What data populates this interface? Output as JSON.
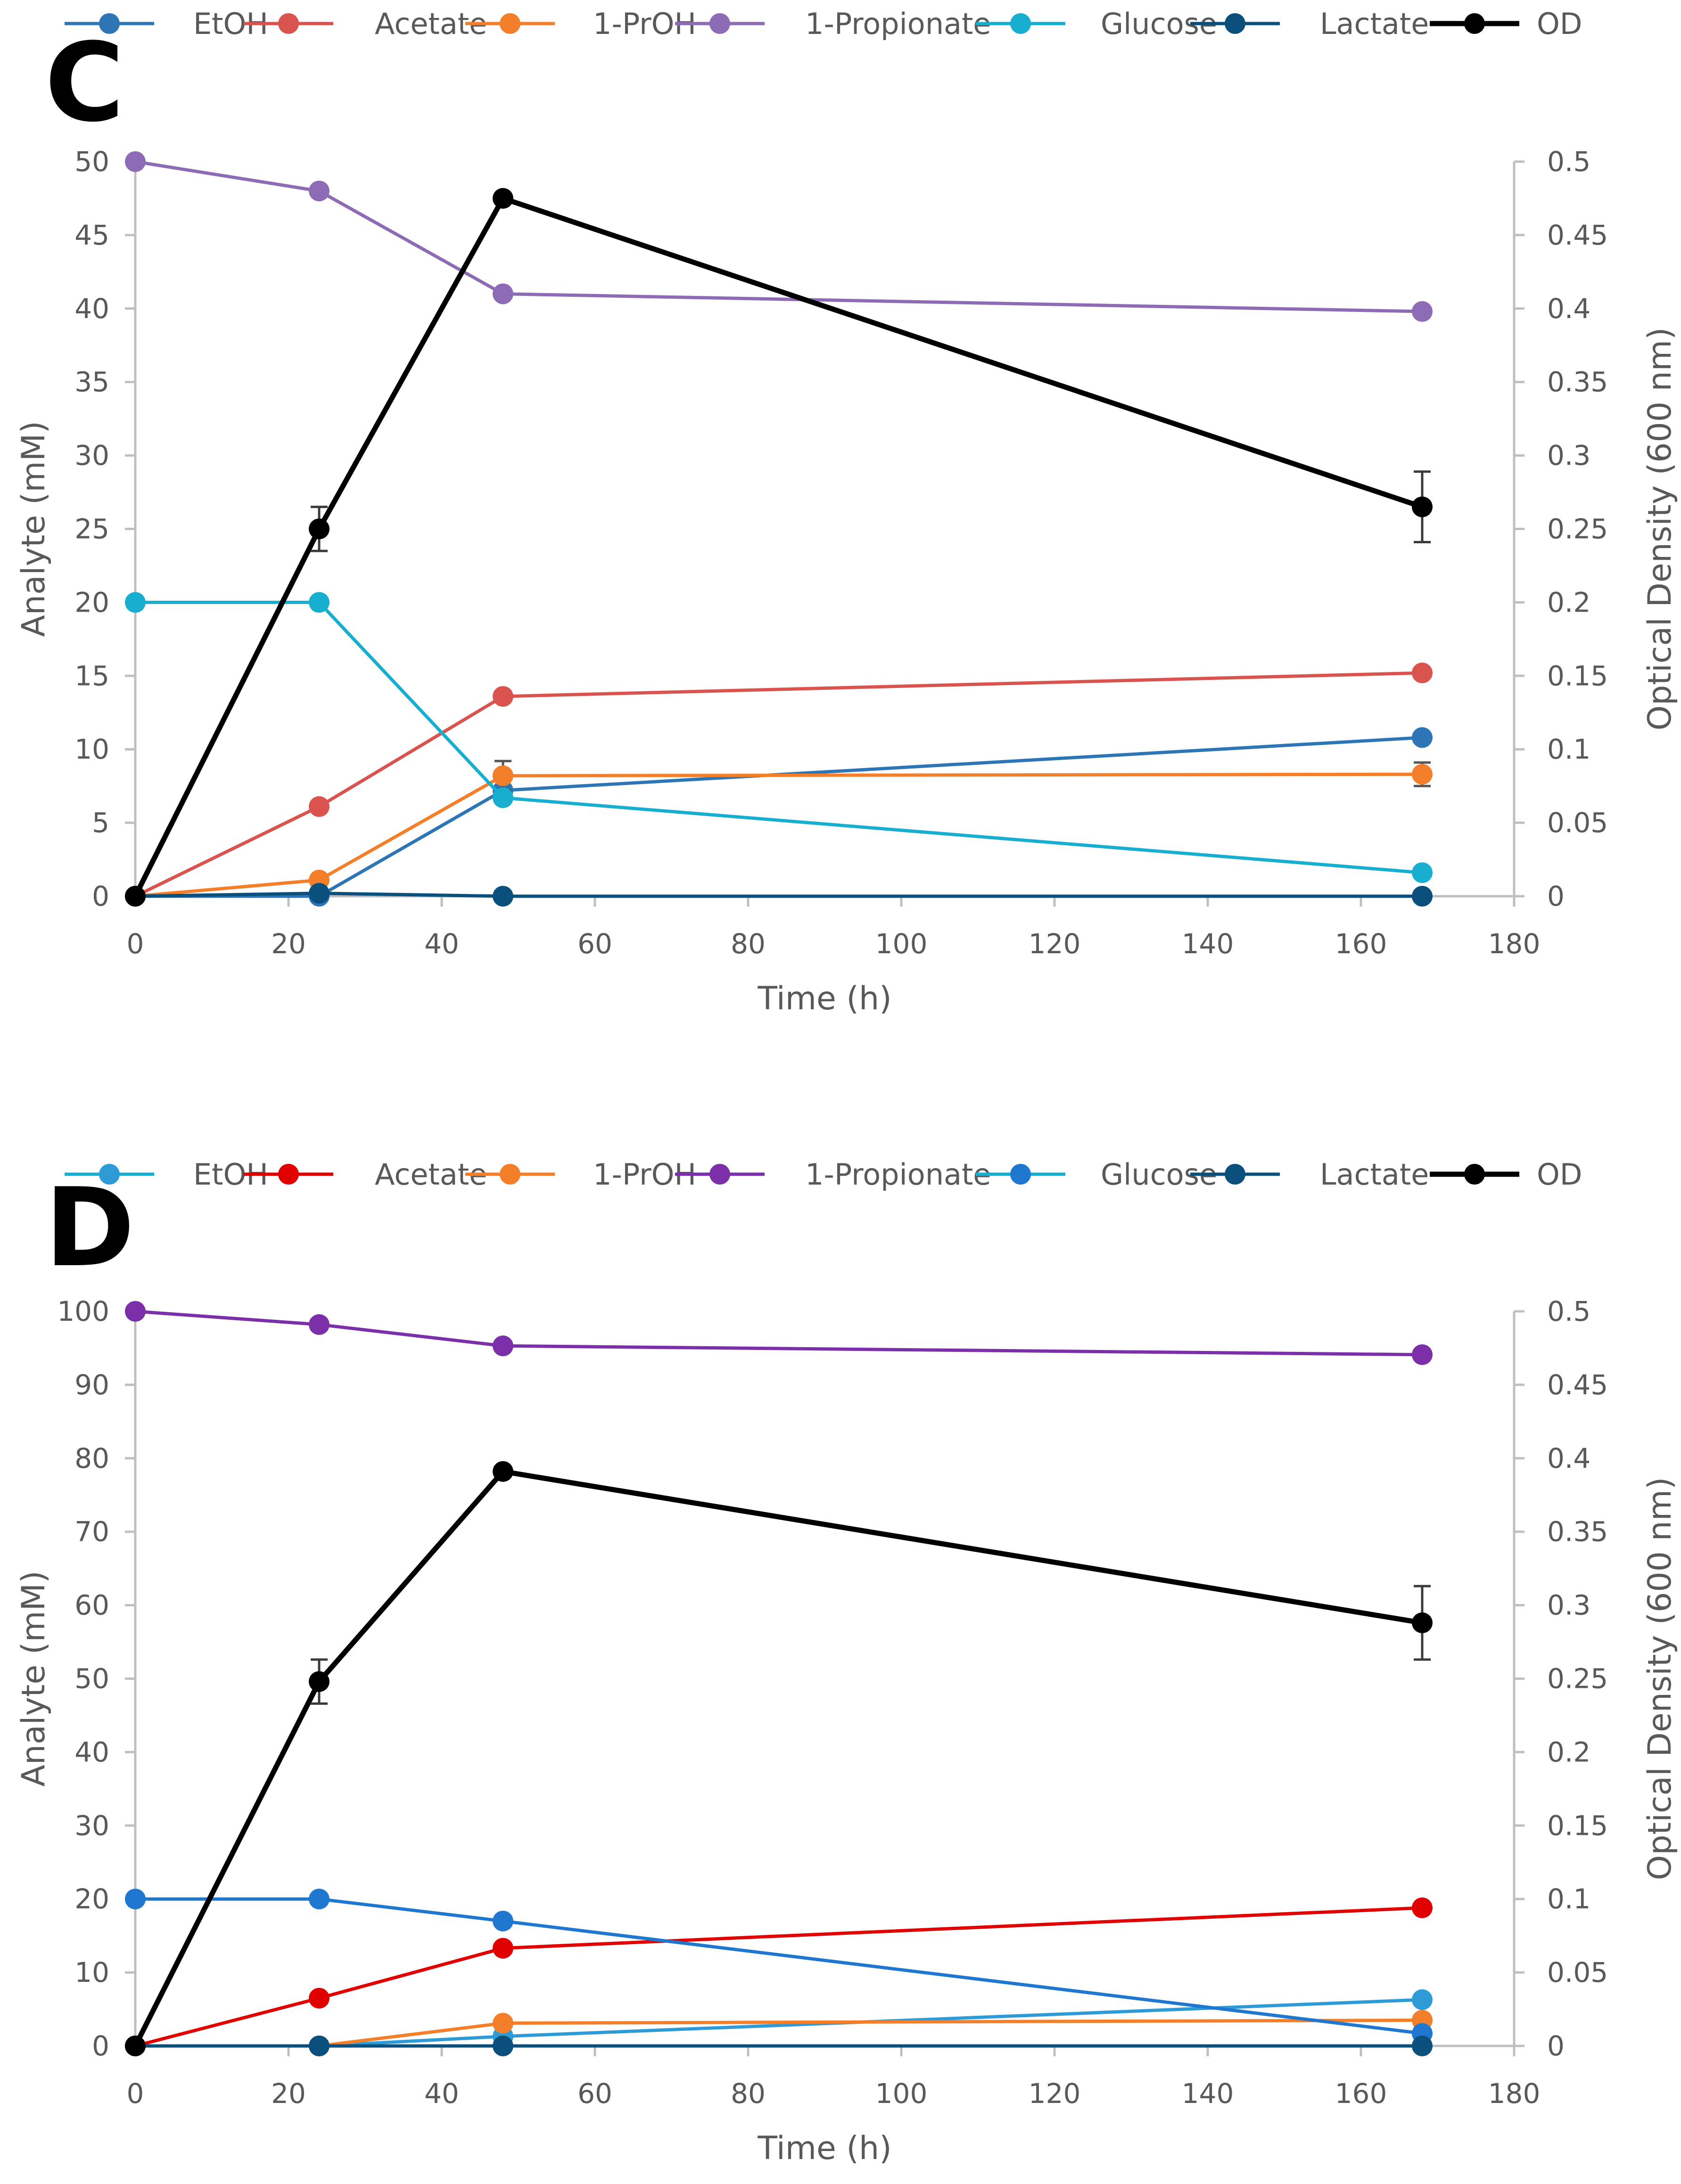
{
  "chart_data": [
    {
      "type": "line",
      "panel_label": "C",
      "xlabel": "Time (h)",
      "ylabel": "Analyte (mM)",
      "y2label": "Optical Density (600 nm)",
      "xlim": [
        0,
        180
      ],
      "ylim": [
        0,
        50
      ],
      "y2lim": [
        0,
        0.5
      ],
      "xticks": [
        "0",
        "20",
        "40",
        "60",
        "80",
        "100",
        "120",
        "140",
        "160",
        "180"
      ],
      "yticks": [
        "0",
        "5",
        "10",
        "15",
        "20",
        "25",
        "30",
        "35",
        "40",
        "45",
        "50"
      ],
      "y2ticks": [
        "0",
        "0.05",
        "0.1",
        "0.15",
        "0.2",
        "0.25",
        "0.3",
        "0.35",
        "0.4",
        "0.45",
        "0.5"
      ],
      "grid": false,
      "legend_position": "top",
      "series": [
        {
          "name": "EtOH",
          "color": "#2E75B6",
          "axis": "left",
          "x": [
            0,
            24,
            48,
            168
          ],
          "y": [
            0,
            0,
            7.2,
            10.8
          ]
        },
        {
          "name": "Acetate",
          "color": "#D9534F",
          "axis": "left",
          "x": [
            0,
            24,
            48,
            168
          ],
          "y": [
            0,
            6.1,
            13.6,
            15.2
          ]
        },
        {
          "name": "1-PrOH",
          "color": "#F47F2A",
          "axis": "left",
          "x": [
            0,
            24,
            48,
            168
          ],
          "y": [
            0,
            1.1,
            8.2,
            8.3
          ],
          "errors": [
            0,
            0.3,
            1.0,
            0.8
          ]
        },
        {
          "name": "1-Propionate",
          "color": "#8E6BB5",
          "axis": "left",
          "x": [
            0,
            24,
            48,
            168
          ],
          "y": [
            50,
            48,
            41,
            39.8
          ]
        },
        {
          "name": "Glucose",
          "color": "#17AECF",
          "axis": "left",
          "x": [
            0,
            24,
            48,
            168
          ],
          "y": [
            20,
            20,
            6.7,
            1.6
          ]
        },
        {
          "name": "Lactate",
          "color": "#0B4F7C",
          "axis": "left",
          "x": [
            0,
            24,
            48,
            168
          ],
          "y": [
            0,
            0.2,
            0,
            0
          ]
        },
        {
          "name": "OD",
          "color": "#000000",
          "axis": "right",
          "x": [
            0,
            24,
            48,
            168
          ],
          "y": [
            0,
            0.25,
            0.475,
            0.265
          ],
          "errors": [
            0,
            0.015,
            0.003,
            0.024
          ]
        }
      ]
    },
    {
      "type": "line",
      "panel_label": "D",
      "xlabel": "Time (h)",
      "ylabel": "Analyte (mM)",
      "y2label": "Optical Density (600 nm)",
      "xlim": [
        0,
        180
      ],
      "ylim": [
        0,
        100
      ],
      "y2lim": [
        0,
        0.5
      ],
      "xticks": [
        "0",
        "20",
        "40",
        "60",
        "80",
        "100",
        "120",
        "140",
        "160",
        "180"
      ],
      "yticks": [
        "0",
        "10",
        "20",
        "30",
        "40",
        "50",
        "60",
        "70",
        "80",
        "90",
        "100"
      ],
      "y2ticks": [
        "0",
        "0.05",
        "0.1",
        "0.15",
        "0.2",
        "0.25",
        "0.3",
        "0.35",
        "0.4",
        "0.45",
        "0.5"
      ],
      "grid": false,
      "legend_position": "top",
      "series": [
        {
          "name": "EtOH",
          "color": "#2E9BD6",
          "axis": "left",
          "x": [
            0,
            24,
            48,
            168
          ],
          "y": [
            0,
            0,
            1.3,
            6.3
          ]
        },
        {
          "name": "Acetate",
          "color": "#E00000",
          "axis": "left",
          "x": [
            0,
            24,
            48,
            168
          ],
          "y": [
            0,
            6.5,
            13.3,
            18.8
          ]
        },
        {
          "name": "1-PrOH",
          "color": "#F47F2A",
          "axis": "left",
          "x": [
            0,
            24,
            48,
            168
          ],
          "y": [
            0,
            0,
            3.1,
            3.5
          ]
        },
        {
          "name": "1-Propionate",
          "color": "#7B2FA8",
          "axis": "left",
          "x": [
            0,
            24,
            48,
            168
          ],
          "y": [
            100,
            98.2,
            95.3,
            94.1
          ]
        },
        {
          "name": "Glucose",
          "color": "#1F77D0",
          "axis": "left",
          "x": [
            0,
            24,
            48,
            168
          ],
          "y": [
            20,
            20,
            17,
            1.7
          ]
        },
        {
          "name": "Lactate",
          "color": "#0B4F7C",
          "axis": "left",
          "x": [
            0,
            24,
            48,
            168
          ],
          "y": [
            0,
            0,
            0,
            0
          ]
        },
        {
          "name": "OD",
          "color": "#000000",
          "axis": "right",
          "x": [
            0,
            24,
            48,
            168
          ],
          "y": [
            0,
            0.248,
            0.391,
            0.288
          ],
          "errors": [
            0,
            0.015,
            0.003,
            0.025
          ]
        }
      ]
    }
  ],
  "legend_line_colors": {
    "C": [
      "#2E75B6",
      "#D9534F",
      "#F47F2A",
      "#8E6BB5",
      "#17AECF",
      "#0B4F7C",
      "#000000"
    ],
    "D": [
      "#17AECF",
      "#E00000",
      "#F47F2A",
      "#7B2FA8",
      "#17AECF",
      "#0B4F7C",
      "#000000"
    ]
  },
  "legend_marker_colors": {
    "C": [
      "#2E75B6",
      "#D9534F",
      "#F47F2A",
      "#8E6BB5",
      "#17AECF",
      "#0B4F7C",
      "#000000"
    ],
    "D": [
      "#2E9BD6",
      "#E00000",
      "#F47F2A",
      "#7B2FA8",
      "#1F77D0",
      "#0B4F7C",
      "#000000"
    ]
  },
  "axis_color": "#BFBFBF"
}
